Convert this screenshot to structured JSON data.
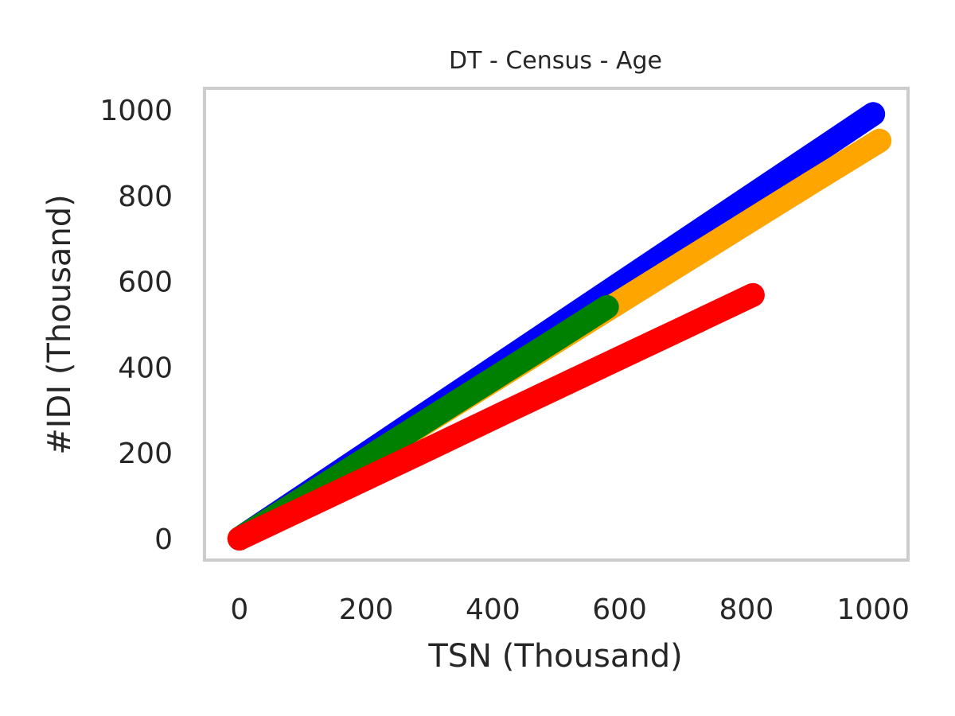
{
  "chart_data": {
    "type": "scatter",
    "title": "DT - Census - Age",
    "xlabel": "TSN (Thousand)",
    "ylabel": "#IDI (Thousand)",
    "xlim": [
      -55,
      1055
    ],
    "ylim": [
      -50,
      1050
    ],
    "xticks": [
      "0",
      "200",
      "400",
      "600",
      "800",
      "1000"
    ],
    "xtick_values": [
      0,
      200,
      400,
      600,
      800,
      1000
    ],
    "yticks": [
      "0",
      "200",
      "400",
      "600",
      "800",
      "1000"
    ],
    "ytick_values": [
      0,
      200,
      400,
      600,
      800,
      1000
    ],
    "grid": false,
    "legend": false,
    "series": [
      {
        "color": "#0000ff",
        "x": [
          0,
          100,
          200,
          300,
          400,
          500,
          600,
          700,
          800,
          900,
          1000
        ],
        "y": [
          0,
          99,
          198,
          297,
          396,
          495,
          594,
          693,
          792,
          891,
          990
        ]
      },
      {
        "color": "#ffa500",
        "x": [
          0,
          100,
          200,
          300,
          400,
          500,
          600,
          700,
          800,
          900,
          1010
        ],
        "y": [
          0,
          92,
          184,
          276,
          368,
          460,
          552,
          644,
          736,
          828,
          928
        ]
      },
      {
        "color": "#008000",
        "x": [
          0,
          100,
          200,
          300,
          400,
          500,
          580
        ],
        "y": [
          0,
          93,
          186,
          279,
          372,
          465,
          540
        ]
      },
      {
        "color": "#ff0000",
        "x": [
          0,
          100,
          200,
          300,
          400,
          500,
          600,
          700,
          810
        ],
        "y": [
          0,
          70,
          140,
          210,
          281,
          351,
          421,
          491,
          568
        ]
      }
    ]
  }
}
